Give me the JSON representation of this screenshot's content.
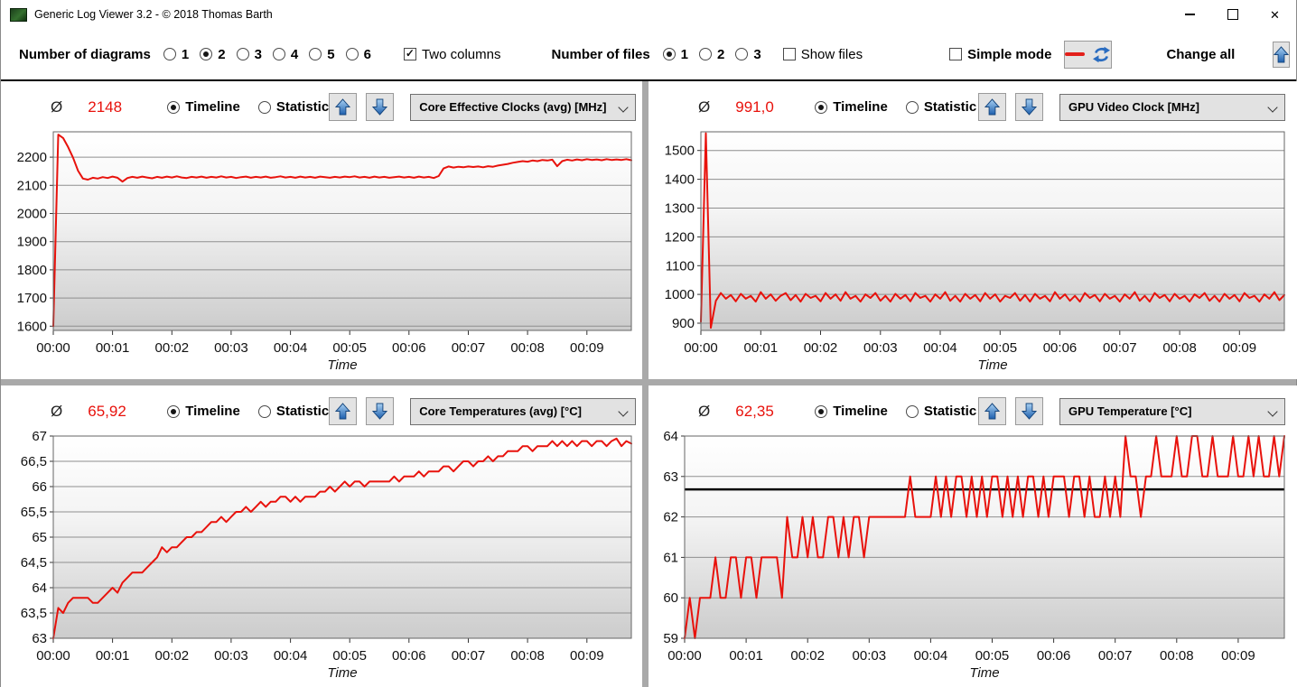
{
  "window": {
    "title": "Generic Log Viewer 3.2 - © 2018 Thomas Barth"
  },
  "toolbar": {
    "diagrams_label": "Number of diagrams",
    "diagram_options": [
      "1",
      "2",
      "3",
      "4",
      "5",
      "6"
    ],
    "diagrams_selected": "2",
    "two_columns_label": "Two columns",
    "two_columns_checked": true,
    "files_label": "Number of files",
    "file_options": [
      "1",
      "2",
      "3"
    ],
    "files_selected": "1",
    "show_files_label": "Show files",
    "show_files_checked": false,
    "simple_mode_label": "Simple mode",
    "simple_mode_checked": false,
    "change_all_label": "Change all"
  },
  "panel_controls": {
    "avg_symbol": "Ø",
    "timeline_label": "Timeline",
    "statistic_label": "Statistic"
  },
  "colors": {
    "accent_red": "#e8120c",
    "arrow_blue": "#2a6cc0",
    "grid": "#8f8f8f",
    "plot_border": "#666666",
    "splitter": "#a9a9a9"
  },
  "chart_data": [
    {
      "name": "core-effective-clocks",
      "type": "line",
      "avg": "2148",
      "selector": "Core Effective Clocks (avg) [MHz]",
      "xlabel": "Time",
      "x_step_s": 5,
      "x_tick_interval_s": 60,
      "x_tick_labels": [
        "00:00",
        "00:01",
        "00:02",
        "00:03",
        "00:04",
        "00:05",
        "00:06",
        "00:07",
        "00:08",
        "00:09"
      ],
      "ylim": [
        1585,
        2290
      ],
      "y_ticks": [
        1600,
        1700,
        1800,
        1900,
        2000,
        2100,
        2200
      ],
      "y_tick_labels": [
        "1600",
        "1700",
        "1800",
        "1900",
        "2000",
        "2100",
        "2200"
      ],
      "line_color": "#e8120c",
      "values": [
        1600,
        2280,
        2268,
        2236,
        2198,
        2152,
        2124,
        2120,
        2127,
        2124,
        2129,
        2126,
        2131,
        2127,
        2113,
        2126,
        2130,
        2127,
        2131,
        2128,
        2125,
        2130,
        2127,
        2131,
        2128,
        2132,
        2128,
        2126,
        2130,
        2128,
        2131,
        2127,
        2130,
        2128,
        2132,
        2128,
        2130,
        2126,
        2129,
        2131,
        2127,
        2130,
        2128,
        2131,
        2127,
        2129,
        2132,
        2128,
        2130,
        2127,
        2131,
        2128,
        2130,
        2127,
        2131,
        2129,
        2127,
        2130,
        2128,
        2131,
        2129,
        2132,
        2128,
        2130,
        2127,
        2131,
        2128,
        2130,
        2127,
        2129,
        2131,
        2128,
        2130,
        2127,
        2131,
        2128,
        2130,
        2126,
        2133,
        2160,
        2167,
        2163,
        2166,
        2164,
        2167,
        2165,
        2167,
        2164,
        2168,
        2166,
        2170,
        2173,
        2176,
        2180,
        2183,
        2186,
        2184,
        2188,
        2186,
        2190,
        2188,
        2191,
        2168,
        2186,
        2191,
        2188,
        2192,
        2189,
        2193,
        2190,
        2192,
        2189,
        2193,
        2190,
        2192,
        2190,
        2193,
        2189
      ]
    },
    {
      "name": "gpu-video-clock",
      "type": "line",
      "avg": "991,0",
      "selector": "GPU Video Clock [MHz]",
      "xlabel": "Time",
      "x_step_s": 5,
      "x_tick_interval_s": 60,
      "x_tick_labels": [
        "00:00",
        "00:01",
        "00:02",
        "00:03",
        "00:04",
        "00:05",
        "00:06",
        "00:07",
        "00:08",
        "00:09"
      ],
      "ylim": [
        875,
        1565
      ],
      "y_ticks": [
        900,
        1000,
        1100,
        1200,
        1300,
        1400,
        1500
      ],
      "y_tick_labels": [
        "900",
        "1000",
        "1100",
        "1200",
        "1300",
        "1400",
        "1500"
      ],
      "line_color": "#e8120c",
      "values": [
        905,
        1560,
        884,
        978,
        1005,
        985,
        998,
        976,
        1002,
        985,
        995,
        975,
        1008,
        985,
        1000,
        978,
        995,
        1005,
        980,
        998,
        975,
        1002,
        988,
        995,
        976,
        1005,
        985,
        1000,
        978,
        1008,
        985,
        995,
        975,
        1000,
        988,
        1005,
        978,
        995,
        975,
        1002,
        985,
        998,
        976,
        1005,
        988,
        995,
        975,
        1000,
        985,
        1008,
        978,
        995,
        975,
        1002,
        985,
        998,
        976,
        1005,
        985,
        1000,
        975,
        995,
        988,
        1005,
        978,
        998,
        975,
        1002,
        985,
        995,
        976,
        1008,
        985,
        1000,
        978,
        995,
        975,
        1005,
        988,
        998,
        976,
        1002,
        985,
        995,
        975,
        1000,
        985,
        1008,
        978,
        995,
        975,
        1005,
        988,
        998,
        976,
        1002,
        985,
        995,
        975,
        1000,
        988,
        1005,
        978,
        995,
        975,
        1002,
        985,
        998,
        976,
        1005,
        988,
        995,
        975,
        1000,
        985,
        1008,
        980,
        998
      ]
    },
    {
      "name": "core-temperatures",
      "type": "line",
      "avg": "65,92",
      "selector": "Core Temperatures (avg) [°C]",
      "xlabel": "Time",
      "x_step_s": 5,
      "x_tick_interval_s": 60,
      "x_tick_labels": [
        "00:00",
        "00:01",
        "00:02",
        "00:03",
        "00:04",
        "00:05",
        "00:06",
        "00:07",
        "00:08",
        "00:09"
      ],
      "ylim": [
        63,
        67
      ],
      "y_ticks": [
        63,
        63.5,
        64,
        64.5,
        65,
        65.5,
        66,
        66.5,
        67
      ],
      "y_tick_labels": [
        "63",
        "63,5",
        "64",
        "64,5",
        "65",
        "65,5",
        "66",
        "66,5",
        "67"
      ],
      "line_color": "#e8120c",
      "values": [
        63.0,
        63.6,
        63.5,
        63.7,
        63.8,
        63.8,
        63.8,
        63.8,
        63.7,
        63.7,
        63.8,
        63.9,
        64.0,
        63.9,
        64.1,
        64.2,
        64.3,
        64.3,
        64.3,
        64.4,
        64.5,
        64.6,
        64.8,
        64.7,
        64.8,
        64.8,
        64.9,
        65.0,
        65.0,
        65.1,
        65.1,
        65.2,
        65.3,
        65.3,
        65.4,
        65.3,
        65.4,
        65.5,
        65.5,
        65.6,
        65.5,
        65.6,
        65.7,
        65.6,
        65.7,
        65.7,
        65.8,
        65.8,
        65.7,
        65.8,
        65.7,
        65.8,
        65.8,
        65.8,
        65.9,
        65.9,
        66.0,
        65.9,
        66.0,
        66.1,
        66.0,
        66.1,
        66.1,
        66.0,
        66.1,
        66.1,
        66.1,
        66.1,
        66.1,
        66.2,
        66.1,
        66.2,
        66.2,
        66.2,
        66.3,
        66.2,
        66.3,
        66.3,
        66.3,
        66.4,
        66.4,
        66.3,
        66.4,
        66.5,
        66.5,
        66.4,
        66.5,
        66.5,
        66.6,
        66.5,
        66.6,
        66.6,
        66.7,
        66.7,
        66.7,
        66.8,
        66.8,
        66.7,
        66.8,
        66.8,
        66.8,
        66.9,
        66.8,
        66.9,
        66.8,
        66.9,
        66.8,
        66.9,
        66.9,
        66.8,
        66.9,
        66.9,
        66.8,
        66.9,
        66.95,
        66.8,
        66.9,
        66.85
      ]
    },
    {
      "name": "gpu-temperature",
      "type": "line",
      "avg": "62,35",
      "selector": "GPU Temperature [°C]",
      "xlabel": "Time",
      "x_step_s": 5,
      "x_tick_interval_s": 60,
      "x_tick_labels": [
        "00:00",
        "00:01",
        "00:02",
        "00:03",
        "00:04",
        "00:05",
        "00:06",
        "00:07",
        "00:08",
        "00:09"
      ],
      "ylim": [
        59,
        64
      ],
      "y_ticks": [
        59,
        60,
        61,
        62,
        63,
        64
      ],
      "y_tick_labels": [
        "59",
        "60",
        "61",
        "62",
        "63",
        "64"
      ],
      "line_color": "#e8120c",
      "ref_line_value": 62.68,
      "ref_line_color": "#000000",
      "values": [
        59,
        60,
        59,
        60,
        60,
        60,
        61,
        60,
        60,
        61,
        61,
        60,
        61,
        61,
        60,
        61,
        61,
        61,
        61,
        60,
        62,
        61,
        61,
        62,
        61,
        62,
        61,
        61,
        62,
        62,
        61,
        62,
        61,
        62,
        62,
        61,
        62,
        62,
        62,
        62,
        62,
        62,
        62,
        62,
        63,
        62,
        62,
        62,
        62,
        63,
        62,
        63,
        62,
        63,
        63,
        62,
        63,
        62,
        63,
        62,
        63,
        63,
        62,
        63,
        62,
        63,
        62,
        63,
        63,
        62,
        63,
        62,
        63,
        63,
        63,
        62,
        63,
        63,
        62,
        63,
        62,
        62,
        63,
        62,
        63,
        62,
        64,
        63,
        63,
        62,
        63,
        63,
        64,
        63,
        63,
        63,
        64,
        63,
        63,
        64,
        64,
        63,
        63,
        64,
        63,
        63,
        63,
        64,
        63,
        63,
        64,
        63,
        64,
        63,
        63,
        64,
        63,
        64
      ]
    }
  ]
}
